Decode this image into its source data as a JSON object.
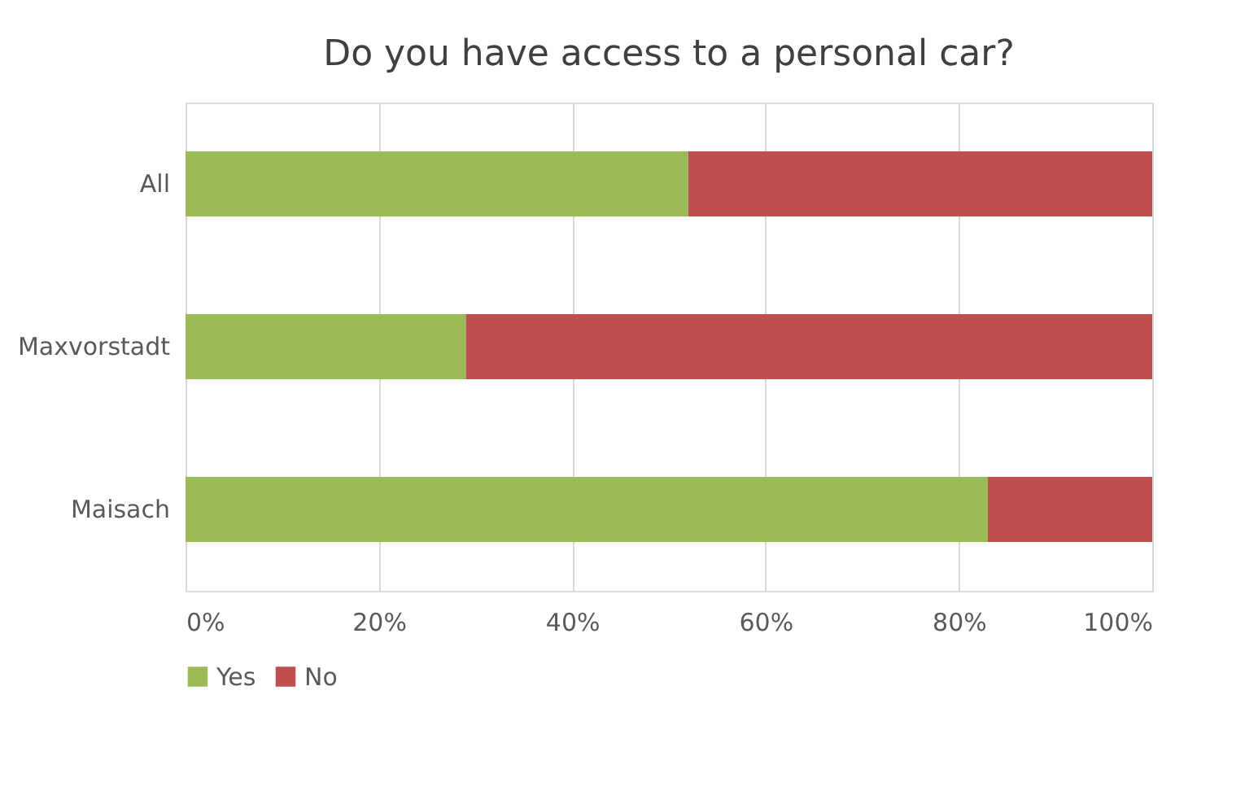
{
  "chart_data": {
    "type": "bar",
    "orientation": "horizontal",
    "stacked": true,
    "title": "Do you have access to a personal car?",
    "categories": [
      "All",
      "Maxvorstadt",
      "Maisach"
    ],
    "series": [
      {
        "name": "Yes",
        "color": "#9bbb59",
        "values": [
          52,
          29,
          83
        ]
      },
      {
        "name": "No",
        "color": "#c0504d",
        "values": [
          48,
          71,
          17
        ]
      }
    ],
    "xlim": [
      0,
      100
    ],
    "xticks": [
      {
        "value": 0,
        "label": "0%"
      },
      {
        "value": 20,
        "label": "20%"
      },
      {
        "value": 40,
        "label": "40%"
      },
      {
        "value": 60,
        "label": "60%"
      },
      {
        "value": 80,
        "label": "80%"
      },
      {
        "value": 100,
        "label": "100%"
      }
    ],
    "grid": "x",
    "legend": "bottom"
  }
}
